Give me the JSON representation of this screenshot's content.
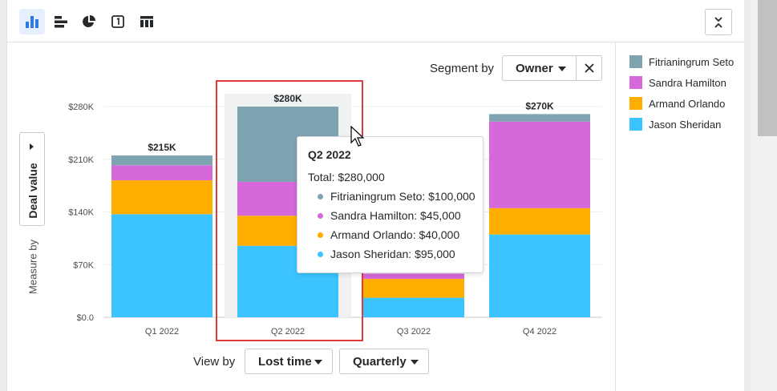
{
  "toolbar": {
    "buttons": [
      {
        "name": "column-chart-icon",
        "active": true
      },
      {
        "name": "bar-chart-icon",
        "active": false
      },
      {
        "name": "pie-chart-icon",
        "active": false
      },
      {
        "name": "scorecard-icon",
        "active": false
      },
      {
        "name": "table-icon",
        "active": false
      }
    ],
    "collapse_icon": "collapse-icon"
  },
  "segment": {
    "label": "Segment by",
    "value": "Owner"
  },
  "measure": {
    "label": "Measure by",
    "value": "Deal value"
  },
  "view": {
    "label": "View by",
    "field": "Lost time",
    "period": "Quarterly"
  },
  "colors": {
    "Fitrianingrum Seto": "#7ea3b1",
    "Sandra Hamilton": "#d668dc",
    "Armand Orlando": "#ffae00",
    "Jason Sheridan": "#3bc4ff",
    "accent": "#317ae2",
    "highlight": "#e03b3b"
  },
  "legend": [
    "Fitrianingrum Seto",
    "Sandra Hamilton",
    "Armand Orlando",
    "Jason Sheridan"
  ],
  "tooltip": {
    "title": "Q2 2022",
    "total": "Total: $280,000",
    "rows": [
      "Fitrianingrum Seto: $100,000",
      "Sandra Hamilton: $45,000",
      "Armand Orlando: $40,000",
      "Jason Sheridan: $95,000"
    ]
  },
  "chart_data": {
    "type": "bar",
    "stacked": true,
    "categories": [
      "Q1 2022",
      "Q2 2022",
      "Q3 2022",
      "Q4 2022"
    ],
    "series": [
      {
        "name": "Jason Sheridan",
        "values": [
          137000,
          95000,
          26000,
          110000
        ]
      },
      {
        "name": "Armand Orlando",
        "values": [
          45000,
          40000,
          25000,
          35000
        ]
      },
      {
        "name": "Sandra Hamilton",
        "values": [
          20000,
          45000,
          7000,
          115000
        ]
      },
      {
        "name": "Fitrianingrum Seto",
        "values": [
          13000,
          100000,
          0,
          10000
        ]
      }
    ],
    "totals": [
      "$215K",
      "$280K",
      "",
      "$270K"
    ],
    "yticks": [
      "$0.0",
      "$70K",
      "$140K",
      "$210K",
      "$280K"
    ],
    "ylim": [
      0,
      280000
    ],
    "highlighted_category": "Q2 2022",
    "grid": true
  }
}
